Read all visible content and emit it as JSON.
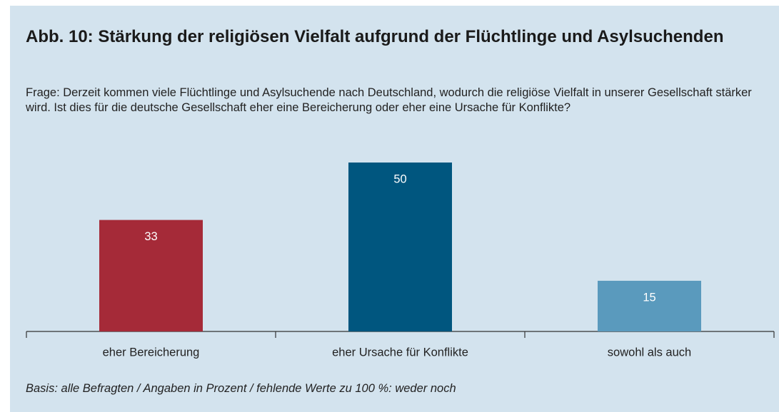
{
  "chart_data": {
    "type": "bar",
    "title": "Abb. 10: Stärkung der religiösen Vielfalt aufgrund der Flüchtlinge und Asylsuchenden",
    "subtitle": "Frage: Derzeit kommen viele Flüchtlinge und Asylsuchende nach Deutschland, wodurch die religiöse Vielfalt in unserer Gesellschaft stärker wird. Ist dies für die deutsche Gesellschaft eher eine Bereicherung oder eher eine Ursache für Konflikte?",
    "categories": [
      "eher Bereicherung",
      "eher Ursache für Konflikte",
      "sowohl als auch"
    ],
    "values": [
      33,
      50,
      15
    ],
    "colors": [
      "#a52a38",
      "#00567f",
      "#5a9abd"
    ],
    "note": "Basis: alle Befragten / Angaben in Prozent / fehlende Werte zu 100 %: weder noch"
  }
}
